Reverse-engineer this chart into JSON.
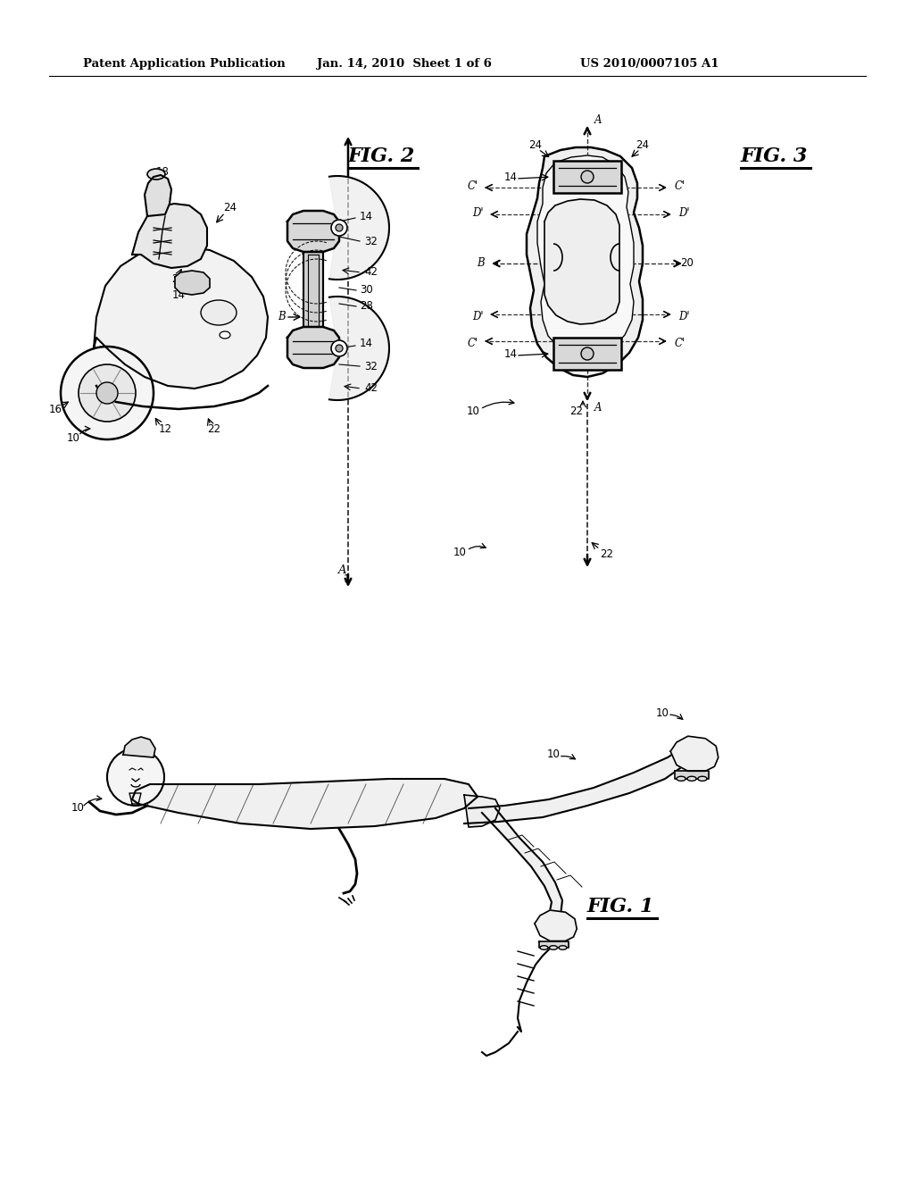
{
  "background_color": "#ffffff",
  "page_width": 10.24,
  "page_height": 13.2,
  "header_text_left": "Patent Application Publication",
  "header_text_mid": "Jan. 14, 2010  Sheet 1 of 6",
  "header_text_right": "US 2010/0007105 A1",
  "fig2_label": "FIG. 2",
  "fig3_label": "FIG. 3",
  "fig1_label": "FIG. 1",
  "label_fontsize": 14,
  "ref_fontsize": 8.5,
  "header_fontsize": 9.5
}
